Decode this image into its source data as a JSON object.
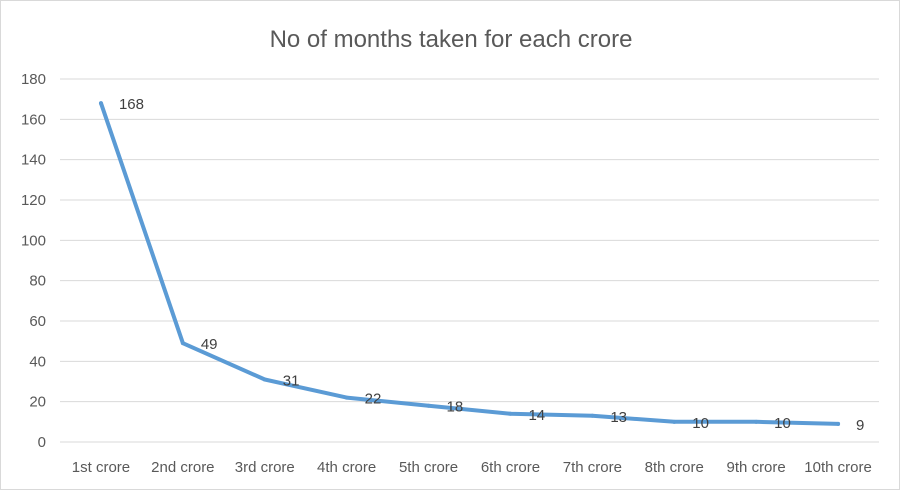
{
  "chart_data": {
    "type": "line",
    "title": "No of months taken for each crore",
    "xlabel": "",
    "ylabel": "",
    "categories": [
      "1st crore",
      "2nd crore",
      "3rd crore",
      "4th crore",
      "5th crore",
      "6th crore",
      "7th crore",
      "8th crore",
      "9th crore",
      "10th crore"
    ],
    "series": [
      {
        "values": [
          168,
          49,
          31,
          22,
          18,
          14,
          13,
          10,
          10,
          9
        ],
        "color": "#5b9bd5"
      }
    ],
    "data_labels": [
      "168",
      "49",
      "31",
      "22",
      "18",
      "14",
      "13",
      "10",
      "10",
      "9"
    ],
    "ylim": [
      0,
      180
    ],
    "y_ticks": [
      "0",
      "20",
      "40",
      "60",
      "80",
      "100",
      "120",
      "140",
      "160",
      "180"
    ],
    "grid": true,
    "legend": "none"
  }
}
